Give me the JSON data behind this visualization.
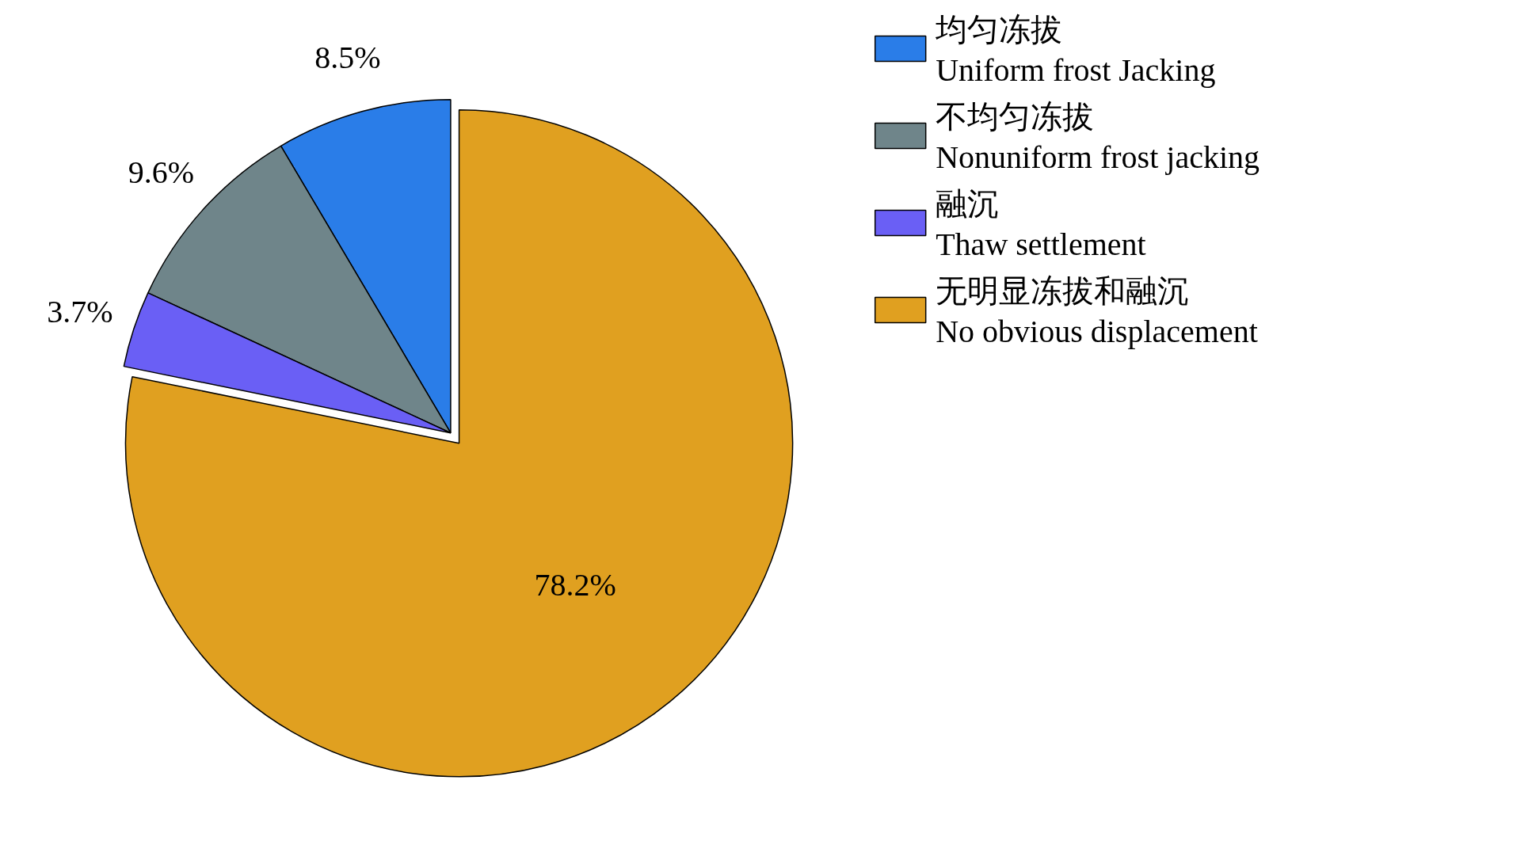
{
  "chart_data": {
    "type": "pie",
    "categories": [
      "均匀冻拔\nUniform frost Jacking",
      "不均匀冻拔\nNonuniform frost jacking",
      "融沉\nThaw settlement",
      "无明显冻拔和融沉\nNo obvious displacement"
    ],
    "values": [
      8.5,
      9.6,
      3.7,
      78.2
    ],
    "colors": [
      "#2a7de8",
      "#6f858a",
      "#6a5ff5",
      "#e0a020"
    ],
    "value_labels": [
      "8.5%",
      "9.6%",
      "3.7%",
      "78.2%"
    ],
    "legend": "right"
  }
}
